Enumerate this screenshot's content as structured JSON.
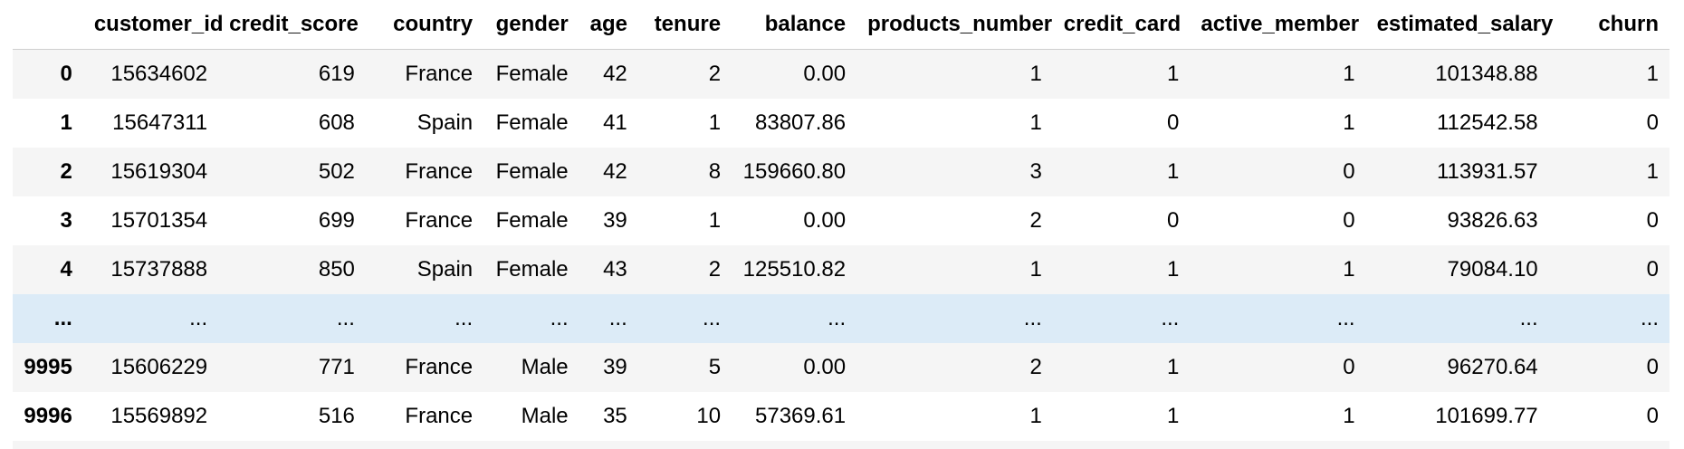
{
  "dataframe": {
    "columns": [
      "customer_id",
      "credit_score",
      "country",
      "gender",
      "age",
      "tenure",
      "balance",
      "products_number",
      "credit_card",
      "active_member",
      "estimated_salary",
      "churn"
    ],
    "rows": [
      {
        "index": "0",
        "values": [
          "15634602",
          "619",
          "France",
          "Female",
          "42",
          "2",
          "0.00",
          "1",
          "1",
          "1",
          "101348.88",
          "1"
        ]
      },
      {
        "index": "1",
        "values": [
          "15647311",
          "608",
          "Spain",
          "Female",
          "41",
          "1",
          "83807.86",
          "1",
          "0",
          "1",
          "112542.58",
          "0"
        ]
      },
      {
        "index": "2",
        "values": [
          "15619304",
          "502",
          "France",
          "Female",
          "42",
          "8",
          "159660.80",
          "3",
          "1",
          "0",
          "113931.57",
          "1"
        ]
      },
      {
        "index": "3",
        "values": [
          "15701354",
          "699",
          "France",
          "Female",
          "39",
          "1",
          "0.00",
          "2",
          "0",
          "0",
          "93826.63",
          "0"
        ]
      },
      {
        "index": "4",
        "values": [
          "15737888",
          "850",
          "Spain",
          "Female",
          "43",
          "2",
          "125510.82",
          "1",
          "1",
          "1",
          "79084.10",
          "0"
        ]
      },
      {
        "index": "...",
        "values": [
          "...",
          "...",
          "...",
          "...",
          "...",
          "...",
          "...",
          "...",
          "...",
          "...",
          "...",
          "..."
        ],
        "hovered": true
      },
      {
        "index": "9995",
        "values": [
          "15606229",
          "771",
          "France",
          "Male",
          "39",
          "5",
          "0.00",
          "2",
          "1",
          "0",
          "96270.64",
          "0"
        ]
      },
      {
        "index": "9996",
        "values": [
          "15569892",
          "516",
          "France",
          "Male",
          "35",
          "10",
          "57369.61",
          "1",
          "1",
          "1",
          "101699.77",
          "0"
        ]
      }
    ],
    "colors": {
      "stripe": "#f5f5f5",
      "hover": "#dcebf7",
      "border": "#cfcfcf"
    }
  }
}
